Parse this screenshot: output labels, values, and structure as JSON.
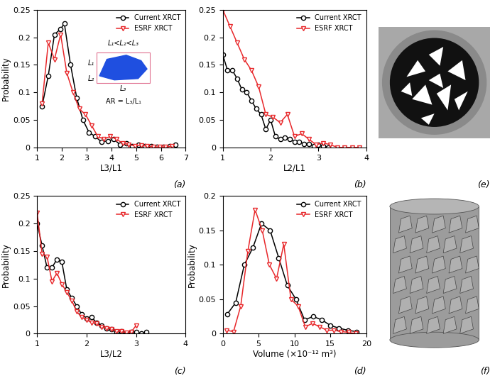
{
  "chart_data": [
    {
      "type": "line",
      "panel": "(a)",
      "x_label": "L3/L1",
      "y_label": "Probability",
      "xlim": [
        1,
        7
      ],
      "xticks": [
        1,
        2,
        3,
        4,
        5,
        6,
        7
      ],
      "ylim": [
        0,
        0.25
      ],
      "yticks": [
        0,
        0.05,
        0.1,
        0.15,
        0.2,
        0.25
      ],
      "legend": "upper right",
      "grid": false,
      "annotations": [
        "L₁<L₂<L₃",
        "L₁",
        "L₂",
        "L₃",
        "AR = L₃/L₁"
      ],
      "series": [
        {
          "name": "Current XRCT",
          "color": "#000000",
          "marker": "circle",
          "x": [
            1.2,
            1.45,
            1.7,
            1.95,
            2.1,
            2.35,
            2.6,
            2.85,
            3.1,
            3.35,
            3.6,
            3.85,
            4.1,
            4.35,
            4.6,
            4.85,
            5.1,
            5.35,
            5.6,
            5.85,
            6.1,
            6.35,
            6.6
          ],
          "values": [
            0.075,
            0.13,
            0.205,
            0.215,
            0.225,
            0.15,
            0.09,
            0.05,
            0.027,
            0.02,
            0.01,
            0.012,
            0.015,
            0.005,
            0.008,
            0.003,
            0.005,
            0.002,
            0.002,
            0.001,
            0.001,
            0.003,
            0.005
          ]
        },
        {
          "name": "ESRF XRCT",
          "color": "#e8282b",
          "marker": "triangle_down",
          "x": [
            1.2,
            1.45,
            1.7,
            1.95,
            2.2,
            2.45,
            2.7,
            2.95,
            3.2,
            3.45,
            3.7,
            3.95,
            4.2,
            4.45,
            4.7,
            4.95,
            5.2,
            5.45,
            5.7,
            5.95,
            6.2,
            6.45
          ],
          "values": [
            0.08,
            0.19,
            0.16,
            0.205,
            0.135,
            0.1,
            0.07,
            0.06,
            0.04,
            0.02,
            0.015,
            0.02,
            0.015,
            0.008,
            0.005,
            0.003,
            0.004,
            0.002,
            0.001,
            0.001,
            0.001,
            0.002
          ]
        }
      ]
    },
    {
      "type": "line",
      "panel": "(b)",
      "x_label": "L2/L1",
      "xlim": [
        1,
        4
      ],
      "xticks": [
        1,
        2,
        3,
        4
      ],
      "ylim": [
        0,
        0.25
      ],
      "yticks": [
        0,
        0.05,
        0.1,
        0.15,
        0.2,
        0.25
      ],
      "legend": "upper right",
      "grid": false,
      "series": [
        {
          "name": "Current XRCT",
          "color": "#000000",
          "marker": "circle",
          "x": [
            1.0,
            1.1,
            1.2,
            1.3,
            1.4,
            1.5,
            1.6,
            1.7,
            1.8,
            1.9,
            2.0,
            2.1,
            2.2,
            2.3,
            2.4,
            2.5,
            2.6,
            2.7,
            2.8,
            2.9,
            3.0,
            3.1,
            3.2
          ],
          "values": [
            0.168,
            0.14,
            0.14,
            0.125,
            0.105,
            0.1,
            0.085,
            0.07,
            0.06,
            0.033,
            0.05,
            0.02,
            0.015,
            0.018,
            0.015,
            0.01,
            0.01,
            0.006,
            0.006,
            0.003,
            0.005,
            0.003,
            0.0
          ]
        },
        {
          "name": "ESRF XRCT",
          "color": "#e8282b",
          "marker": "triangle_down",
          "x": [
            1.0,
            1.15,
            1.3,
            1.45,
            1.6,
            1.75,
            1.9,
            2.05,
            2.2,
            2.35,
            2.5,
            2.65,
            2.8,
            2.95,
            3.1,
            3.25,
            3.4,
            3.55,
            3.7,
            3.85
          ],
          "values": [
            0.25,
            0.22,
            0.19,
            0.16,
            0.14,
            0.11,
            0.06,
            0.055,
            0.045,
            0.06,
            0.02,
            0.025,
            0.015,
            0.005,
            0.008,
            0.005,
            0.0,
            0.0,
            0.0,
            0.0
          ]
        }
      ]
    },
    {
      "type": "line",
      "panel": "(c)",
      "x_label": "L3/L2",
      "y_label": "Probability",
      "xlim": [
        1,
        4
      ],
      "xticks": [
        1,
        2,
        3,
        4
      ],
      "ylim": [
        0,
        0.25
      ],
      "yticks": [
        0,
        0.05,
        0.1,
        0.15,
        0.2,
        0.25
      ],
      "legend": "upper right",
      "grid": false,
      "series": [
        {
          "name": "Current XRCT",
          "color": "#000000",
          "marker": "circle",
          "x": [
            1.0,
            1.1,
            1.2,
            1.3,
            1.4,
            1.5,
            1.6,
            1.7,
            1.8,
            1.9,
            2.0,
            2.1,
            2.2,
            2.3,
            2.4,
            2.5,
            2.6,
            2.7,
            2.8,
            2.9,
            3.0,
            3.1,
            3.2
          ],
          "values": [
            0.2,
            0.16,
            0.12,
            0.12,
            0.135,
            0.13,
            0.08,
            0.065,
            0.05,
            0.035,
            0.028,
            0.03,
            0.02,
            0.015,
            0.01,
            0.008,
            0.003,
            0.005,
            0.001,
            0.003,
            0.003,
            0.0,
            0.003
          ]
        },
        {
          "name": "ESRF XRCT",
          "color": "#e8282b",
          "marker": "triangle_down",
          "x": [
            1.0,
            1.1,
            1.2,
            1.3,
            1.4,
            1.5,
            1.6,
            1.7,
            1.8,
            1.9,
            2.0,
            2.1,
            2.2,
            2.3,
            2.4,
            2.5,
            2.6,
            2.7,
            2.8,
            2.9,
            3.0
          ],
          "values": [
            0.22,
            0.145,
            0.14,
            0.095,
            0.11,
            0.09,
            0.075,
            0.06,
            0.04,
            0.03,
            0.025,
            0.02,
            0.018,
            0.012,
            0.01,
            0.008,
            0.005,
            0.004,
            0.002,
            0.003,
            0.015
          ]
        }
      ]
    },
    {
      "type": "line",
      "panel": "(d)",
      "x_label": "Volume (×10⁻¹² m³)",
      "y_label": "Probability",
      "xlim": [
        0,
        20
      ],
      "xticks": [
        0,
        5,
        10,
        15,
        20
      ],
      "ylim": [
        0,
        0.2
      ],
      "yticks": [
        0,
        0.05,
        0.1,
        0.15,
        0.2
      ],
      "legend": "upper right",
      "grid": false,
      "series": [
        {
          "name": "Current XRCT",
          "color": "#000000",
          "marker": "circle",
          "x": [
            0.6,
            1.8,
            3.0,
            4.2,
            5.4,
            6.6,
            7.8,
            9.0,
            10.2,
            11.4,
            12.6,
            13.8,
            15.0,
            16.2,
            17.4,
            18.6
          ],
          "values": [
            0.028,
            0.045,
            0.1,
            0.125,
            0.16,
            0.15,
            0.11,
            0.07,
            0.05,
            0.02,
            0.025,
            0.02,
            0.012,
            0.008,
            0.005,
            0.003
          ]
        },
        {
          "name": "ESRF XRCT",
          "color": "#e8282b",
          "marker": "triangle_down",
          "x": [
            0.5,
            1.5,
            2.5,
            3.5,
            4.5,
            5.5,
            6.5,
            7.5,
            8.5,
            9.5,
            10.5,
            11.5,
            12.5,
            13.5,
            14.5,
            15.5,
            16.5,
            17.5,
            18.5
          ],
          "values": [
            0.005,
            0.003,
            0.04,
            0.12,
            0.18,
            0.15,
            0.1,
            0.08,
            0.13,
            0.05,
            0.04,
            0.01,
            0.015,
            0.01,
            0.005,
            0.005,
            0.003,
            0.002,
            0.0
          ]
        }
      ]
    }
  ],
  "images": [
    {
      "panel": "(e)"
    },
    {
      "panel": "(f)"
    }
  ]
}
